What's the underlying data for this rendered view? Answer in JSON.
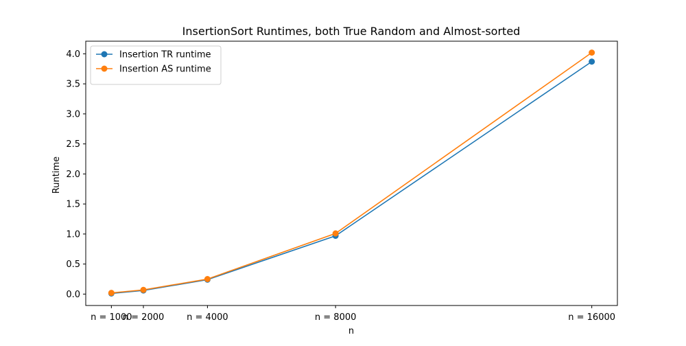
{
  "chart_data": {
    "type": "line",
    "title": "InsertionSort Runtimes, both True Random and Almost-sorted",
    "xlabel": "n",
    "ylabel": "Runtime",
    "x": [
      1000,
      2000,
      4000,
      8000,
      16000
    ],
    "x_tick_labels": [
      "n = 1000",
      "n = 2000",
      "n = 4000",
      "n = 8000",
      "n = 16000"
    ],
    "xlim": [
      200,
      16800
    ],
    "ylim": [
      -0.19,
      4.21
    ],
    "y_ticks": [
      0.0,
      0.5,
      1.0,
      1.5,
      2.0,
      2.5,
      3.0,
      3.5,
      4.0
    ],
    "y_tick_labels": [
      "0.0",
      "0.5",
      "1.0",
      "1.5",
      "2.0",
      "2.5",
      "3.0",
      "3.5",
      "4.0"
    ],
    "grid": false,
    "legend_position": "top-left",
    "series": [
      {
        "name": "Insertion TR runtime",
        "color": "#1f77b4",
        "values": [
          0.01,
          0.06,
          0.24,
          0.97,
          3.87
        ]
      },
      {
        "name": "Insertion AS runtime",
        "color": "#ff7f0e",
        "values": [
          0.02,
          0.07,
          0.25,
          1.01,
          4.02
        ]
      }
    ]
  }
}
